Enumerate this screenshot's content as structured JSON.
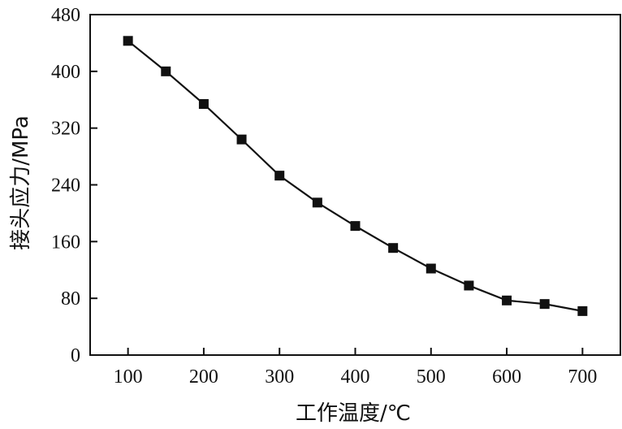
{
  "chart_data": {
    "type": "line",
    "title": "",
    "xlabel": "工作温度/℃",
    "ylabel": "接头应力/MPa",
    "xlim": [
      50,
      750
    ],
    "ylim": [
      0,
      480
    ],
    "x_ticks": [
      100,
      200,
      300,
      400,
      500,
      600,
      700
    ],
    "y_ticks": [
      0,
      80,
      160,
      240,
      320,
      400,
      480
    ],
    "grid": false,
    "legend": "none",
    "series": [
      {
        "x": [
          100,
          150,
          200,
          250,
          300,
          350,
          400,
          450,
          500,
          550,
          600,
          650,
          700
        ],
        "y": [
          443,
          400,
          354,
          304,
          253,
          215,
          182,
          151,
          122,
          98,
          77,
          72,
          62
        ],
        "color": "#111111",
        "marker": "square"
      }
    ]
  }
}
